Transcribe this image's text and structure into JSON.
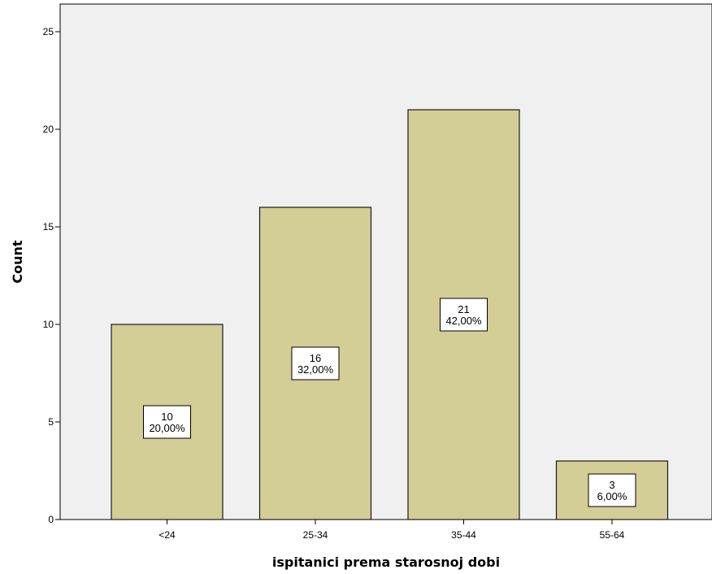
{
  "chart_data": {
    "type": "bar",
    "title": "",
    "xlabel": "ispitanici prema starosnoj dobi",
    "ylabel": "Count",
    "categories": [
      "<24",
      "25-34",
      "35-44",
      "55-64"
    ],
    "values": [
      10,
      16,
      21,
      3
    ],
    "percent_labels": [
      "20,00%",
      "32,00%",
      "42,00%",
      "6,00%"
    ],
    "ylim": [
      0,
      26
    ],
    "yticks": [
      0,
      5,
      10,
      15,
      20,
      25
    ],
    "grid": false,
    "colors": {
      "bar_fill": "#d3cd96",
      "bar_stroke": "#1a1a1a",
      "plot_background": "#f0f0f0",
      "page_background": "#ffffff"
    }
  }
}
